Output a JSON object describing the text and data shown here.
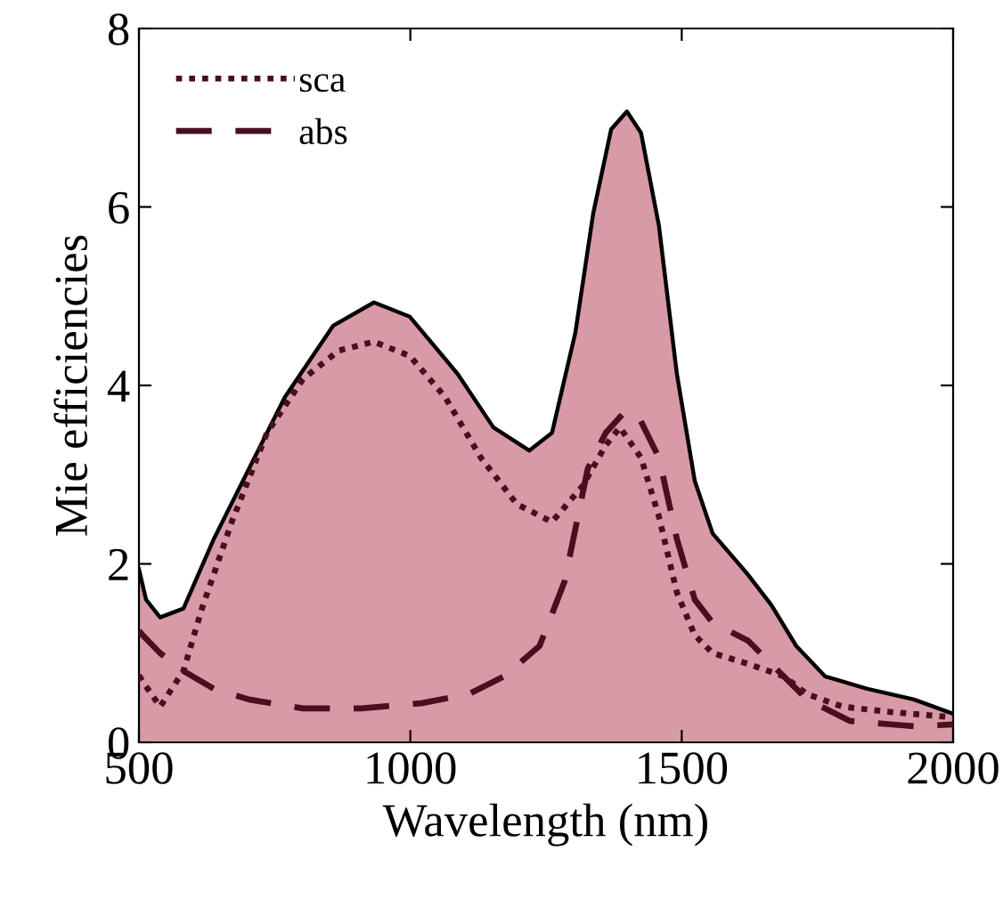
{
  "chart_data": {
    "type": "line",
    "xlabel": "Wavelength (nm)",
    "ylabel": "Mie efficiencies",
    "xlim": [
      500,
      2000
    ],
    "ylim": [
      0,
      8
    ],
    "xticks": [
      500,
      1000,
      1500,
      2000
    ],
    "yticks": [
      0,
      2,
      4,
      6,
      8
    ],
    "grid": false,
    "legend": "top left",
    "series": [
      {
        "type": "area",
        "color": "#d89aa6",
        "x": [
          500,
          513,
          539,
          582,
          638,
          703,
          769,
          858,
          933,
          999,
          1087,
          1153,
          1219,
          1261,
          1304,
          1337,
          1370,
          1399,
          1425,
          1458,
          1491,
          1524,
          1557,
          1622,
          1665,
          1711,
          1764,
          1842,
          1928,
          2000
        ],
        "values": [
          1.94,
          1.6,
          1.4,
          1.5,
          2.28,
          3.07,
          3.87,
          4.67,
          4.93,
          4.77,
          4.13,
          3.53,
          3.27,
          3.47,
          4.59,
          5.93,
          6.87,
          7.07,
          6.83,
          5.79,
          4.13,
          2.93,
          2.34,
          1.88,
          1.54,
          1.08,
          0.74,
          0.6,
          0.48,
          0.32
        ]
      },
      {
        "name": "sca",
        "color": "#4a0f1f",
        "line_style": "dotted",
        "x": [
          500,
          507,
          539,
          582,
          615,
          671,
          736,
          802,
          868,
          933,
          999,
          1064,
          1130,
          1196,
          1261,
          1317,
          1360,
          1386,
          1425,
          1458,
          1491,
          1524,
          1557,
          1622,
          1688,
          1731,
          1796,
          1885,
          2000
        ],
        "values": [
          0.75,
          0.68,
          0.4,
          0.8,
          1.48,
          2.47,
          3.47,
          4.07,
          4.39,
          4.49,
          4.33,
          3.87,
          3.19,
          2.67,
          2.47,
          2.87,
          3.33,
          3.53,
          3.19,
          2.53,
          1.68,
          1.2,
          1.0,
          0.88,
          0.74,
          0.54,
          0.4,
          0.34,
          0.28
        ]
      },
      {
        "name": "abs",
        "color": "#4a0f1f",
        "line_style": "dashed",
        "x": [
          500,
          507,
          539,
          582,
          638,
          703,
          802,
          910,
          1022,
          1107,
          1173,
          1238,
          1284,
          1327,
          1360,
          1393,
          1419,
          1458,
          1491,
          1524,
          1557,
          1622,
          1688,
          1731,
          1810,
          1928,
          2000
        ],
        "values": [
          1.25,
          1.2,
          1.0,
          0.8,
          0.6,
          0.48,
          0.38,
          0.38,
          0.44,
          0.54,
          0.74,
          1.08,
          1.8,
          3.07,
          3.47,
          3.69,
          3.67,
          3.19,
          2.28,
          1.6,
          1.34,
          1.14,
          0.74,
          0.48,
          0.24,
          0.18,
          0.2
        ]
      }
    ]
  }
}
